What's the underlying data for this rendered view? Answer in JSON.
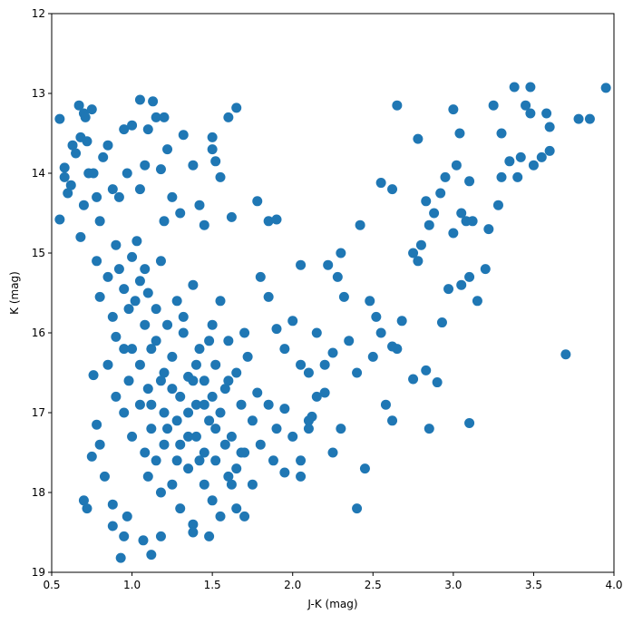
{
  "chart_data": {
    "type": "scatter",
    "xlabel": "J-K (mag)",
    "ylabel": "K (mag)",
    "color": "#1f77b4",
    "xlim": [
      0.5,
      4.0
    ],
    "ylim": [
      19,
      12
    ],
    "xticks": [
      0.5,
      {
        "value": 1,
        "label": "1.0"
      },
      1.5,
      {
        "value": 2,
        "label": "2.0"
      },
      2.5,
      {
        "value": 3,
        "label": "3.0"
      },
      3.5,
      {
        "value": 4,
        "label": "4.0"
      }
    ],
    "yticks": [
      12,
      13,
      14,
      15,
      16,
      17,
      18,
      19
    ],
    "x": [
      0.55,
      0.55,
      0.58,
      0.58,
      0.6,
      0.62,
      0.63,
      0.65,
      0.67,
      0.68,
      0.7,
      0.71,
      0.72,
      0.75,
      0.73,
      0.76,
      0.78,
      0.68,
      0.7,
      0.8,
      0.82,
      0.85,
      0.88,
      0.9,
      0.92,
      0.95,
      0.97,
      1.0,
      1.05,
      1.1,
      1.13,
      1.15,
      1.2,
      1.22,
      1.18,
      1.08,
      1.25,
      1.3,
      1.32,
      1.38,
      1.42,
      1.5,
      1.5,
      1.52,
      1.55,
      1.6,
      1.65,
      1.62,
      1.45,
      1.2,
      1.05,
      1.03,
      0.78,
      0.8,
      0.85,
      0.88,
      0.9,
      0.92,
      0.95,
      0.98,
      1.0,
      1.02,
      1.05,
      1.08,
      1.1,
      1.12,
      1.15,
      1.18,
      1.2,
      1.22,
      1.25,
      1.28,
      1.3,
      1.32,
      1.35,
      1.38,
      1.4,
      1.42,
      1.45,
      1.48,
      1.5,
      1.52,
      1.55,
      1.58,
      1.6,
      1.62,
      1.65,
      1.68,
      1.7,
      1.72,
      1.75,
      1.78,
      1.8,
      1.85,
      1.88,
      1.9,
      1.95,
      2.0,
      2.05,
      2.1,
      0.85,
      0.9,
      0.95,
      0.98,
      1.0,
      1.05,
      1.08,
      1.1,
      1.12,
      1.15,
      1.18,
      1.2,
      1.25,
      1.28,
      1.3,
      1.35,
      1.38,
      1.4,
      1.45,
      1.5,
      1.52,
      1.55,
      1.6,
      1.65,
      1.68,
      1.7,
      1.75,
      0.7,
      0.72,
      0.88,
      0.88,
      0.95,
      0.97,
      1.07,
      1.12,
      0.93,
      1.18,
      1.48,
      1.38,
      0.78,
      0.8,
      0.76,
      0.83,
      0.75,
      1.8,
      1.85,
      1.9,
      1.95,
      2.0,
      2.05,
      2.1,
      2.12,
      2.15,
      2.2,
      2.25,
      2.28,
      2.22,
      2.3,
      2.35,
      2.4,
      2.45,
      2.5,
      2.52,
      2.55,
      2.58,
      2.62,
      2.65,
      2.68,
      2.25,
      1.85,
      1.9,
      1.78,
      2.05,
      2.3,
      2.42,
      2.55,
      2.62,
      2.65,
      2.4,
      2.15,
      1.95,
      2.05,
      2.1,
      2.2,
      2.32,
      2.48,
      2.75,
      2.78,
      2.8,
      2.83,
      2.85,
      2.88,
      2.92,
      2.95,
      2.97,
      3.0,
      3.0,
      3.02,
      3.05,
      3.05,
      3.08,
      3.1,
      3.1,
      3.12,
      3.15,
      3.2,
      3.22,
      3.25,
      3.28,
      3.3,
      3.3,
      3.35,
      3.38,
      3.42,
      3.45,
      3.48,
      3.48,
      3.5,
      3.55,
      3.58,
      3.6,
      3.6,
      3.7,
      3.78,
      3.85,
      3.95,
      2.78,
      2.85,
      2.9,
      2.83,
      2.93,
      3.1,
      3.04,
      3.4,
      2.75,
      2.62,
      1.0,
      1.05,
      1.1,
      1.15,
      1.2,
      1.25,
      1.3,
      1.35,
      1.4,
      1.45,
      1.5,
      1.55,
      1.6,
      1.65,
      1.7,
      1.12,
      1.22,
      1.32,
      1.42,
      1.52,
      1.62,
      1.28,
      1.38,
      1.48,
      1.58,
      1.18,
      1.08,
      0.95,
      1.35,
      1.45
    ],
    "values": [
      13.32,
      14.58,
      13.93,
      14.05,
      14.25,
      14.15,
      13.65,
      13.75,
      13.15,
      13.55,
      13.25,
      13.3,
      13.6,
      13.2,
      14.0,
      14.0,
      14.3,
      14.8,
      14.4,
      14.6,
      13.8,
      13.65,
      14.2,
      14.9,
      14.3,
      13.45,
      14.0,
      13.4,
      13.08,
      13.45,
      13.1,
      13.3,
      13.3,
      13.7,
      13.95,
      13.9,
      14.3,
      14.5,
      13.52,
      13.9,
      14.4,
      13.55,
      13.7,
      13.85,
      14.05,
      13.3,
      13.18,
      14.55,
      14.65,
      14.6,
      14.2,
      14.85,
      15.1,
      15.55,
      15.3,
      15.8,
      16.05,
      15.2,
      15.45,
      15.7,
      15.05,
      15.6,
      15.35,
      15.9,
      15.5,
      16.2,
      15.7,
      15.1,
      16.5,
      15.9,
      16.3,
      15.6,
      16.8,
      16.0,
      16.55,
      15.4,
      16.9,
      16.2,
      16.6,
      17.1,
      15.9,
      16.4,
      17.0,
      16.7,
      16.1,
      17.3,
      16.5,
      16.9,
      17.5,
      16.3,
      17.1,
      16.75,
      17.4,
      16.9,
      17.6,
      17.2,
      17.75,
      17.3,
      17.6,
      17.1,
      16.4,
      16.8,
      17.0,
      16.6,
      17.3,
      16.9,
      17.5,
      17.8,
      17.2,
      17.6,
      18.0,
      17.4,
      17.9,
      17.1,
      18.2,
      17.7,
      18.4,
      17.3,
      17.9,
      18.1,
      17.6,
      18.3,
      17.8,
      18.2,
      17.5,
      18.3,
      17.9,
      18.1,
      18.2,
      18.15,
      18.42,
      18.55,
      18.3,
      18.6,
      18.78,
      18.82,
      18.55,
      18.55,
      18.5,
      17.15,
      17.4,
      16.53,
      17.8,
      17.55,
      15.3,
      15.55,
      15.95,
      16.2,
      15.85,
      16.4,
      16.5,
      17.05,
      16.0,
      16.75,
      17.5,
      15.3,
      15.15,
      17.2,
      16.1,
      16.5,
      17.7,
      16.3,
      15.8,
      16.0,
      16.9,
      17.1,
      16.2,
      15.85,
      16.25,
      14.6,
      14.58,
      14.35,
      15.15,
      15.0,
      14.65,
      14.12,
      14.2,
      13.15,
      18.2,
      16.8,
      16.95,
      17.8,
      17.2,
      16.4,
      15.55,
      15.6,
      15.0,
      15.1,
      14.9,
      14.35,
      14.65,
      14.5,
      14.25,
      14.05,
      15.45,
      14.75,
      13.2,
      13.9,
      14.5,
      15.4,
      14.6,
      14.1,
      15.3,
      14.6,
      15.6,
      15.2,
      14.7,
      13.15,
      14.4,
      14.05,
      13.5,
      13.85,
      12.92,
      13.8,
      13.15,
      13.25,
      12.92,
      13.9,
      13.8,
      13.25,
      13.72,
      13.42,
      16.27,
      13.32,
      13.32,
      12.93,
      13.57,
      17.2,
      16.62,
      16.47,
      15.87,
      17.13,
      13.5,
      14.05,
      16.58,
      16.17,
      16.2,
      16.4,
      16.7,
      16.1,
      17.0,
      16.7,
      17.4,
      17.0,
      16.4,
      17.5,
      16.8,
      15.6,
      16.6,
      17.7,
      16.0,
      16.9,
      17.2,
      15.8,
      17.6,
      17.2,
      17.9,
      17.6,
      16.6,
      16.1,
      17.4,
      16.6,
      15.2,
      16.2,
      17.3,
      16.9
    ]
  }
}
